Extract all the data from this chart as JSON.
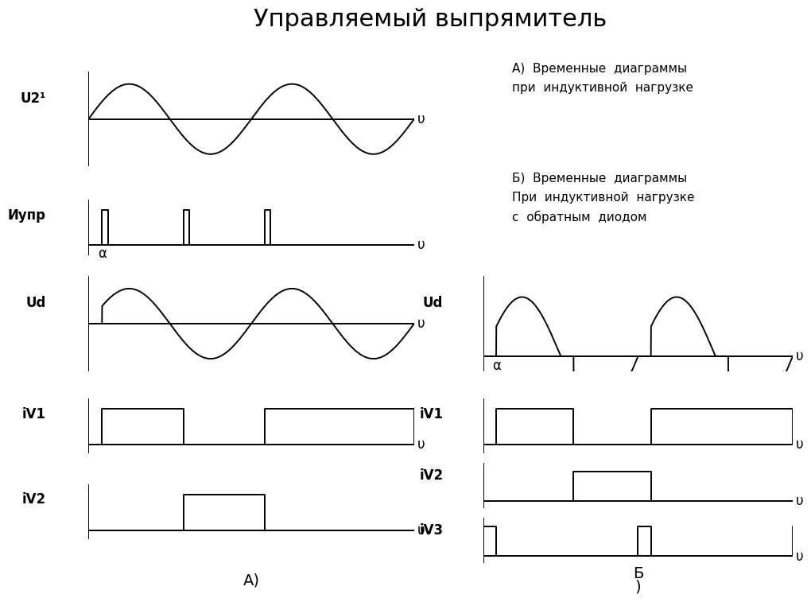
{
  "title": "Управляемый выпрямитель",
  "title_fontsize": 22,
  "background_color": "#ffffff",
  "line_color": "#000000",
  "label_fontsize": 12,
  "annotation_fontsize": 11,
  "left_labels": [
    "U2¹",
    "Иупр",
    "Ud",
    "iV1",
    "iV2"
  ],
  "right_labels": [
    "Ud",
    "iV1",
    "iV2",
    "iV3"
  ],
  "text_A": "А)",
  "text_B": "Б\n)",
  "annot_A": "А)  Временные  диаграммы\nпри  индуктивной  нагрузке",
  "annot_B": "Б)  Временные  диаграммы\nПри  индуктивной  нагрузке\nс  обратным  диодом",
  "alpha_label": "α",
  "upsilon_label": "υ",
  "alpha": 0.5235987755982988
}
